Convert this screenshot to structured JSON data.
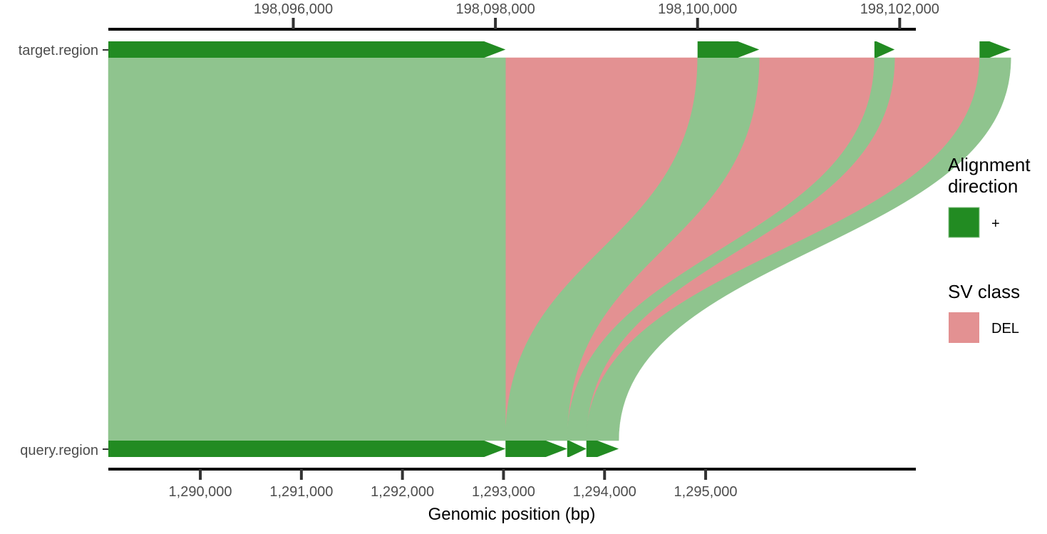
{
  "chart_data": {
    "type": "alignment-ribbon",
    "title": "",
    "xlabel": "Genomic position (bp)",
    "rows": {
      "target": "target.region",
      "query": "query.region"
    },
    "target_axis": {
      "range": [
        198094170,
        198102160
      ],
      "ticks": [
        198096000,
        198098000,
        198100000,
        198102000
      ],
      "tick_labels": [
        "198,096,000",
        "198,098,000",
        "198,100,000",
        "198,102,000"
      ]
    },
    "query_axis": {
      "range": [
        1289090,
        1297080
      ],
      "ticks": [
        1290000,
        1291000,
        1292000,
        1293000,
        1294000,
        1295000
      ],
      "tick_labels": [
        "1,290,000",
        "1,291,000",
        "1,292,000",
        "1,293,000",
        "1,294,000",
        "1,295,000"
      ]
    },
    "alignments": [
      {
        "direction": "+",
        "target": [
          198094170,
          198098100
        ],
        "query": [
          1289090,
          1293020
        ]
      },
      {
        "direction": "+",
        "target": [
          198100000,
          198100610
        ],
        "query": [
          1293020,
          1293630
        ]
      },
      {
        "direction": "+",
        "target": [
          198101750,
          198101950
        ],
        "query": [
          1293630,
          1293820
        ]
      },
      {
        "direction": "+",
        "target": [
          198102790,
          198103100
        ],
        "query": [
          1293820,
          1294140
        ]
      }
    ],
    "sv_events": [
      {
        "class": "DEL",
        "target": [
          198098100,
          198100000
        ],
        "query_position": 1293020
      },
      {
        "class": "DEL",
        "target": [
          198100610,
          198101750
        ],
        "query_position": 1293630
      },
      {
        "class": "DEL",
        "target": [
          198101950,
          198102790
        ],
        "query_position": 1293820
      }
    ],
    "legend": {
      "position": "right",
      "alignment_title": "Alignment direction",
      "alignment_items": [
        {
          "label": "+",
          "color": "#228b22"
        }
      ],
      "sv_title": "SV class",
      "sv_items": [
        {
          "label": "DEL",
          "color": "#e39192"
        }
      ]
    },
    "colors": {
      "alignment_block": "#228b22",
      "alignment_ribbon": "#8fc48e",
      "del_ribbon": "#e39192",
      "axis_line": "#000000",
      "tick": "#333333"
    }
  }
}
